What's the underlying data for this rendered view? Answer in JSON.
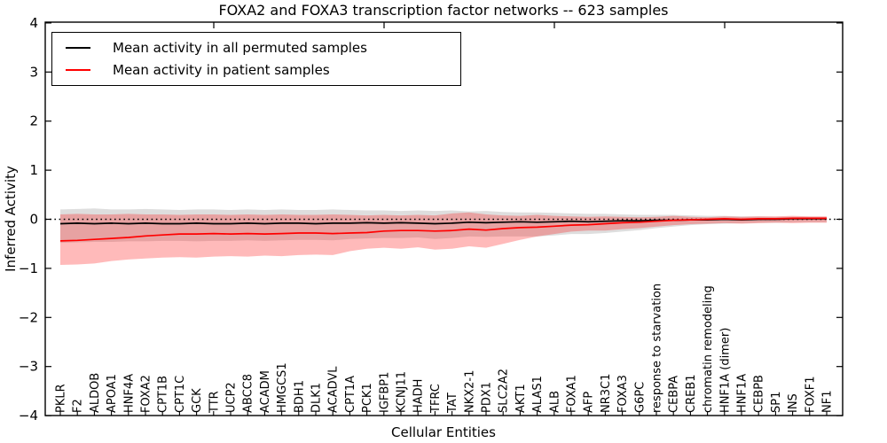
{
  "chart_data": {
    "type": "line",
    "title": "FOXA2 and FOXA3 transcription factor networks -- 623 samples",
    "xlabel": "Cellular Entities",
    "ylabel": "Inferred Activity",
    "ylim": [
      -4,
      4
    ],
    "yticks": [
      4,
      3,
      2,
      1,
      0,
      -1,
      -2,
      -3,
      -4
    ],
    "grid": false,
    "legend_position": "upper left",
    "reference_line": {
      "y": 0,
      "style": "dotted",
      "color": "#000000"
    },
    "categories": [
      "PKLR",
      "F2",
      "ALDOB",
      "APOA1",
      "HNF4A",
      "FOXA2",
      "CPT1B",
      "CPT1C",
      "GCK",
      "TTR",
      "UCP2",
      "ABCC8",
      "ACADM",
      "HMGCS1",
      "BDH1",
      "DLK1",
      "ACADVL",
      "CPT1A",
      "PCK1",
      "IGFBP1",
      "KCNJ11",
      "HADH",
      "TFRC",
      "TAT",
      "NKX2-1",
      "PDX1",
      "SLC2A2",
      "AKT1",
      "ALAS1",
      "ALB",
      "FOXA1",
      "AFP",
      "NR3C1",
      "FOXA3",
      "G6PC",
      "response to starvation",
      "CEBPA",
      "CREB1",
      "chromatin remodeling",
      "HNF1A (dimer)",
      "HNF1A",
      "CEBPB",
      "SP1",
      "INS",
      "FOXF1",
      "NF1"
    ],
    "series": [
      {
        "name": "Mean activity in all permuted samples",
        "color": "#000000",
        "style": "solid",
        "values": [
          -0.09,
          -0.08,
          -0.09,
          -0.08,
          -0.09,
          -0.08,
          -0.09,
          -0.09,
          -0.08,
          -0.09,
          -0.09,
          -0.08,
          -0.09,
          -0.08,
          -0.08,
          -0.09,
          -0.08,
          -0.08,
          -0.07,
          -0.08,
          -0.07,
          -0.08,
          -0.09,
          -0.08,
          -0.06,
          -0.07,
          -0.06,
          -0.05,
          -0.06,
          -0.05,
          -0.04,
          -0.05,
          -0.04,
          -0.03,
          -0.03,
          -0.02,
          -0.02,
          -0.01,
          -0.01,
          0.0,
          -0.01,
          0.0,
          0.0,
          0.01,
          0.01,
          0.01
        ]
      },
      {
        "name": "Mean activity in patient samples",
        "color": "#ff0000",
        "style": "solid",
        "values": [
          -0.44,
          -0.43,
          -0.41,
          -0.39,
          -0.37,
          -0.34,
          -0.32,
          -0.3,
          -0.3,
          -0.29,
          -0.3,
          -0.29,
          -0.3,
          -0.29,
          -0.28,
          -0.28,
          -0.29,
          -0.28,
          -0.27,
          -0.24,
          -0.23,
          -0.23,
          -0.24,
          -0.23,
          -0.2,
          -0.22,
          -0.19,
          -0.17,
          -0.16,
          -0.14,
          -0.12,
          -0.11,
          -0.09,
          -0.07,
          -0.06,
          -0.04,
          -0.02,
          -0.01,
          0.0,
          0.01,
          0.0,
          0.01,
          0.01,
          0.02,
          0.02,
          0.02
        ]
      }
    ],
    "bands": [
      {
        "name": "permuted samples activity range",
        "color": "#000000",
        "opacity": 0.13,
        "upper": [
          0.2,
          0.21,
          0.22,
          0.2,
          0.2,
          0.21,
          0.2,
          0.19,
          0.2,
          0.2,
          0.19,
          0.2,
          0.19,
          0.2,
          0.19,
          0.19,
          0.2,
          0.19,
          0.18,
          0.18,
          0.17,
          0.18,
          0.17,
          0.18,
          0.16,
          0.17,
          0.15,
          0.14,
          0.14,
          0.13,
          0.12,
          0.11,
          0.11,
          0.1,
          0.09,
          0.09,
          0.09,
          0.08,
          0.07,
          0.07,
          0.06,
          0.06,
          0.05,
          0.05,
          0.05,
          0.05
        ],
        "lower": [
          -0.48,
          -0.47,
          -0.46,
          -0.46,
          -0.45,
          -0.45,
          -0.44,
          -0.44,
          -0.45,
          -0.44,
          -0.44,
          -0.43,
          -0.44,
          -0.43,
          -0.42,
          -0.42,
          -0.43,
          -0.4,
          -0.39,
          -0.38,
          -0.38,
          -0.37,
          -0.4,
          -0.38,
          -0.35,
          -0.36,
          -0.35,
          -0.35,
          -0.35,
          -0.33,
          -0.3,
          -0.3,
          -0.28,
          -0.25,
          -0.22,
          -0.18,
          -0.15,
          -0.12,
          -0.1,
          -0.09,
          -0.08,
          -0.07,
          -0.07,
          -0.06,
          -0.06,
          -0.06
        ]
      },
      {
        "name": "patient samples activity range",
        "color": "#ff0000",
        "opacity": 0.27,
        "upper": [
          0.1,
          0.11,
          0.1,
          0.1,
          0.11,
          0.1,
          0.1,
          0.09,
          0.1,
          0.1,
          0.09,
          0.1,
          0.09,
          0.1,
          0.09,
          0.09,
          0.1,
          0.09,
          0.08,
          0.09,
          0.08,
          0.09,
          0.08,
          0.12,
          0.14,
          0.1,
          0.08,
          0.07,
          0.09,
          0.07,
          0.06,
          0.05,
          0.06,
          0.05,
          0.04,
          0.05,
          0.07,
          0.05,
          0.04,
          0.06,
          0.05,
          0.06,
          0.06,
          0.07,
          0.06,
          0.06
        ],
        "lower": [
          -0.93,
          -0.92,
          -0.9,
          -0.85,
          -0.82,
          -0.8,
          -0.78,
          -0.77,
          -0.78,
          -0.76,
          -0.75,
          -0.76,
          -0.74,
          -0.75,
          -0.73,
          -0.72,
          -0.73,
          -0.65,
          -0.6,
          -0.58,
          -0.6,
          -0.57,
          -0.62,
          -0.6,
          -0.55,
          -0.58,
          -0.5,
          -0.42,
          -0.35,
          -0.3,
          -0.25,
          -0.23,
          -0.23,
          -0.2,
          -0.18,
          -0.15,
          -0.12,
          -0.1,
          -0.09,
          -0.08,
          -0.09,
          -0.08,
          -0.07,
          -0.08,
          -0.07,
          -0.07
        ]
      }
    ]
  }
}
